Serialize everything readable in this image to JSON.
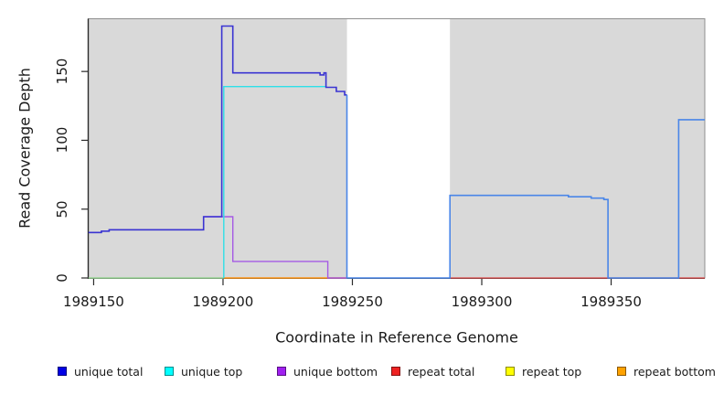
{
  "chart_data": {
    "type": "line",
    "subtype": "step-coverage-plot",
    "title": "",
    "xlabel": "Coordinate in Reference Genome",
    "ylabel": "Read Coverage Depth",
    "xlim": [
      1989147.9,
      1989386.2
    ],
    "ylim": [
      0,
      188.3
    ],
    "grid": false,
    "background_color": "#d9d9d9",
    "uncovered_band": {
      "x_start": 1989247.9,
      "x_end": 1989287.7,
      "color": "#ffffff"
    },
    "x_axis": {
      "title": "Coordinate in Reference Genome",
      "ticks": [
        1989150,
        1989200,
        1989250,
        1989300,
        1989350
      ]
    },
    "y_axis": {
      "title": "Read Coverage Depth",
      "ticks": [
        0,
        50,
        100,
        150
      ]
    },
    "legend_position": "bottom",
    "legend": [
      {
        "label": "unique total",
        "color": "#0000e6"
      },
      {
        "label": "unique top",
        "color": "#00ffff"
      },
      {
        "label": "unique bottom",
        "color": "#a020f0"
      },
      {
        "label": "repeat total",
        "color": "#ee2222"
      },
      {
        "label": "repeat top",
        "color": "#ffff00"
      },
      {
        "label": "repeat bottom",
        "color": "#ffa200"
      }
    ],
    "series": [
      {
        "name": "repeat top (overlaps unique top at 0, blended)",
        "segments": [
          {
            "color": "#97d494",
            "width": 1.4,
            "points": [
              [
                1989148,
                0
              ],
              [
                1989200.3,
                0
              ]
            ]
          }
        ]
      },
      {
        "name": "repeat bottom",
        "segments": [
          {
            "color": "#ff9514",
            "width": 1.5,
            "points": [
              [
                1989200.3,
                0
              ],
              [
                1989247.9,
                0
              ]
            ]
          }
        ]
      },
      {
        "name": "repeat total",
        "segments": [
          {
            "color": "#e04848",
            "width": 1.3,
            "points": [
              [
                1989287.7,
                0
              ],
              [
                1989386.2,
                0
              ]
            ]
          }
        ]
      },
      {
        "name": "unique bottom",
        "segments": [
          {
            "color": "#a55ae4",
            "width": 1.4,
            "points": [
              [
                1989192.5,
                44.5
              ],
              [
                1989203.8,
                44.5
              ],
              [
                1989203.8,
                12
              ],
              [
                1989240.5,
                12
              ],
              [
                1989240.5,
                0
              ],
              [
                1989247.9,
                0
              ]
            ]
          }
        ]
      },
      {
        "name": "unique top",
        "segments": [
          {
            "color": "#2edfe8",
            "width": 1.4,
            "points": [
              [
                1989200.3,
                0
              ],
              [
                1989200.3,
                139
              ],
              [
                1989240,
                139
              ]
            ]
          }
        ]
      },
      {
        "name": "unique total",
        "segments": [
          {
            "color": "#3a34d2",
            "width": 1.6,
            "points": [
              [
                1989148,
                33
              ],
              [
                1989153,
                33
              ],
              [
                1989153,
                34
              ],
              [
                1989156,
                34
              ],
              [
                1989156,
                35
              ],
              [
                1989192.5,
                35
              ],
              [
                1989192.5,
                44.5
              ],
              [
                1989199.5,
                44.5
              ],
              [
                1989199.5,
                183
              ],
              [
                1989203.8,
                183
              ],
              [
                1989203.8,
                149
              ],
              [
                1989237.5,
                149
              ],
              [
                1989237.5,
                147.5
              ],
              [
                1989239,
                147.5
              ],
              [
                1989239,
                149
              ],
              [
                1989239.8,
                149
              ],
              [
                1989239.8,
                138.5
              ],
              [
                1989243.8,
                138.5
              ],
              [
                1989243.8,
                135.5
              ],
              [
                1989247,
                135.5
              ],
              [
                1989247,
                133
              ],
              [
                1989247.9,
                133
              ]
            ]
          },
          {
            "color": "#4a86e8",
            "width": 1.6,
            "points": [
              [
                1989247.9,
                133
              ],
              [
                1989247.9,
                0
              ],
              [
                1989287.7,
                0
              ],
              [
                1989287.7,
                60
              ],
              [
                1989333.5,
                60
              ],
              [
                1989333.5,
                59
              ],
              [
                1989342.3,
                59
              ],
              [
                1989342.3,
                58
              ],
              [
                1989347.2,
                58
              ],
              [
                1989347.2,
                57
              ],
              [
                1989348.8,
                57
              ],
              [
                1989348.8,
                0
              ],
              [
                1989376.1,
                0
              ],
              [
                1989376.1,
                115
              ],
              [
                1989386.2,
                115
              ]
            ]
          }
        ]
      }
    ]
  }
}
